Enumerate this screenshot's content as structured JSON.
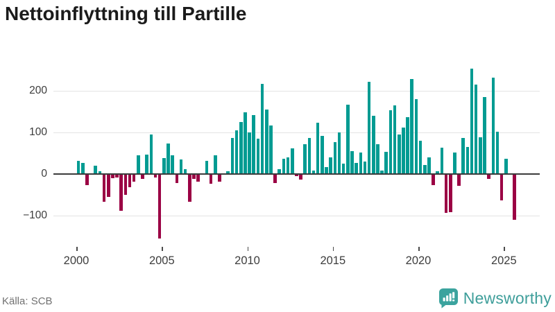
{
  "title": "Nettoinflyttning till Partille",
  "source": "Källa: SCB",
  "branding": {
    "name": "Newsworthy",
    "icon": "newsworthy-speech-bubble-barchart-icon",
    "icon_color": "#3ba39e",
    "text_color": "#3e9e9a"
  },
  "chart_data": {
    "type": "bar",
    "title": "Nettoinflyttning till Partille",
    "xlabel": "",
    "ylabel": "",
    "frequency": "quarterly",
    "x_start": "2000-Q1",
    "x_end": "2025-Q3",
    "x_tick_labels": [
      "2000",
      "2005",
      "2010",
      "2015",
      "2020",
      "2025"
    ],
    "y_tick_labels": [
      "200",
      "100",
      "0",
      "−100"
    ],
    "y_ticks": [
      200,
      100,
      0,
      -100
    ],
    "ylim": [
      -165,
      262
    ],
    "grid": "horizontal-only",
    "legend": "none",
    "positive_color": "#009b92",
    "negative_color": "#9b0144",
    "zero_line_color": "#3b3b3b",
    "data_by_year": [
      {
        "year": 2000,
        "q": [
          31,
          26,
          -27,
          0
        ]
      },
      {
        "year": 2001,
        "q": [
          19,
          6,
          -67,
          -55
        ]
      },
      {
        "year": 2002,
        "q": [
          -10,
          -8,
          -88,
          -50
        ]
      },
      {
        "year": 2003,
        "q": [
          -31,
          -19,
          44,
          -12
        ]
      },
      {
        "year": 2004,
        "q": [
          46,
          94,
          -9,
          -155
        ]
      },
      {
        "year": 2005,
        "q": [
          38,
          73,
          44,
          -22
        ]
      },
      {
        "year": 2006,
        "q": [
          34,
          11,
          -67,
          -11
        ]
      },
      {
        "year": 2007,
        "q": [
          -18,
          0,
          31,
          -24
        ]
      },
      {
        "year": 2008,
        "q": [
          44,
          -19,
          0,
          7
        ]
      },
      {
        "year": 2009,
        "q": [
          86,
          104,
          124,
          148
        ]
      },
      {
        "year": 2010,
        "q": [
          100,
          142,
          84,
          217
        ]
      },
      {
        "year": 2011,
        "q": [
          155,
          116,
          -21,
          12
        ]
      },
      {
        "year": 2012,
        "q": [
          36,
          40,
          61,
          -5
        ]
      },
      {
        "year": 2013,
        "q": [
          -14,
          71,
          87,
          8
        ]
      },
      {
        "year": 2014,
        "q": [
          123,
          92,
          17,
          40
        ]
      },
      {
        "year": 2015,
        "q": [
          76,
          99,
          25,
          167
        ]
      },
      {
        "year": 2016,
        "q": [
          55,
          27,
          51,
          29
        ]
      },
      {
        "year": 2017,
        "q": [
          222,
          140,
          72,
          8
        ]
      },
      {
        "year": 2018,
        "q": [
          53,
          153,
          165,
          94
        ]
      },
      {
        "year": 2019,
        "q": [
          111,
          136,
          228,
          180
        ]
      },
      {
        "year": 2020,
        "q": [
          79,
          21,
          40,
          -27
        ]
      },
      {
        "year": 2021,
        "q": [
          7,
          63,
          -93,
          -91
        ]
      },
      {
        "year": 2022,
        "q": [
          51,
          -29,
          87,
          64
        ]
      },
      {
        "year": 2023,
        "q": [
          253,
          215,
          88,
          184
        ]
      },
      {
        "year": 2024,
        "q": [
          -12,
          231,
          102,
          -63
        ]
      },
      {
        "year": 2025,
        "q": [
          37,
          0,
          -110
        ]
      }
    ]
  }
}
